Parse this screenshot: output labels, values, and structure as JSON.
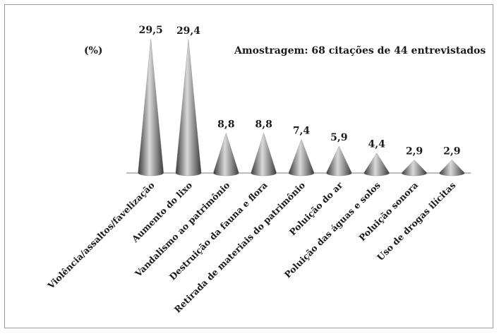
{
  "chart_data": {
    "type": "bar",
    "bar_shape": "cone",
    "categories": [
      "Violência/assaltos/favelização",
      "Aumento do lixo",
      "Vandalismo ao patrimônio",
      "Destruição da fauna e flora",
      "Retirada de materiais do patrimônio",
      "Poluição do ar",
      "Poluição das águas e solos",
      "Poluição sonora",
      "Uso de drogas ilícitas"
    ],
    "values": [
      29.5,
      29.4,
      8.8,
      8.8,
      7.4,
      5.9,
      4.4,
      2.9,
      2.9
    ],
    "value_labels": [
      "29,5",
      "29,4",
      "8,8",
      "8,8",
      "7,4",
      "5,9",
      "4,4",
      "2,9",
      "2,9"
    ],
    "ylabel": "(%)",
    "annotation": "Amostragem: 68 citações de 44 entrevistados",
    "ylim": [
      0,
      30
    ],
    "grid": false,
    "legend": "none",
    "colors": {
      "cone_light": "#d9d9d9",
      "cone_mid": "#8c8c8c",
      "cone_dark": "#3a3a3a",
      "axis": "#777777",
      "text": "#1a1a1a"
    }
  }
}
